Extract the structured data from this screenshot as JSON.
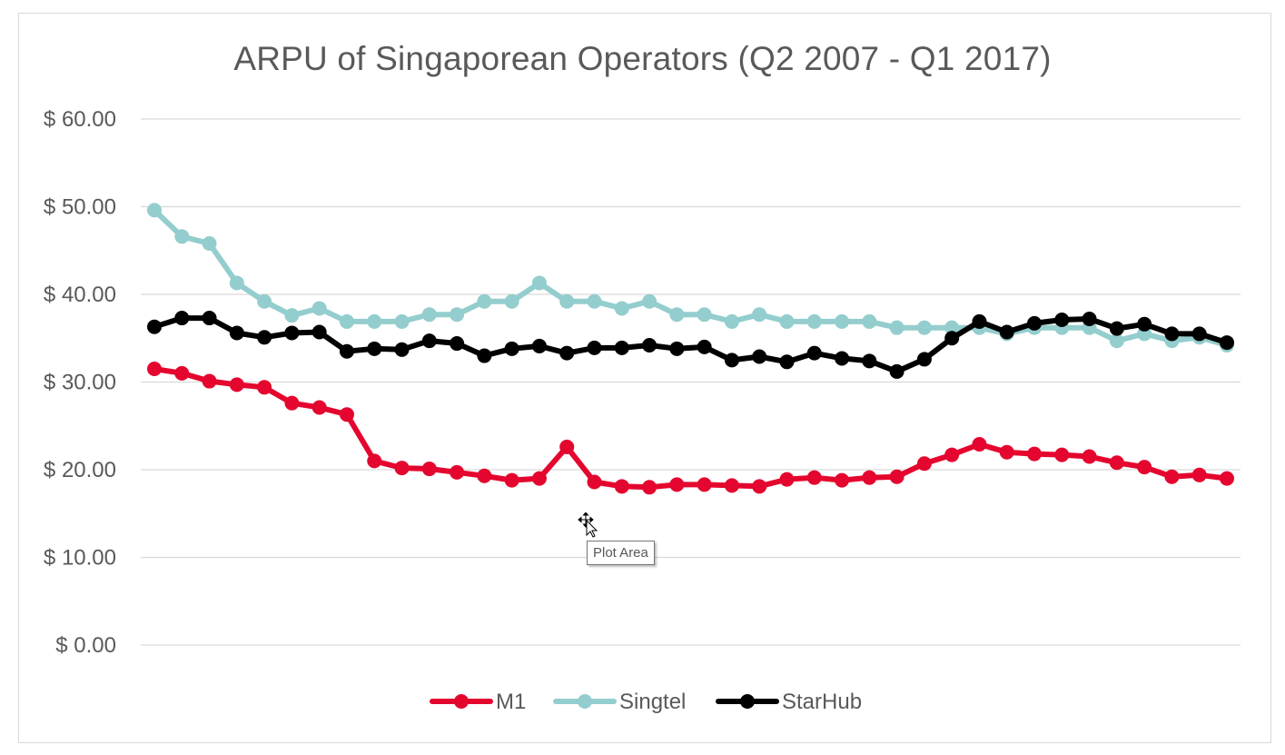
{
  "chart_data": {
    "type": "line",
    "title": "ARPU of Singaporean Operators (Q2 2007 - Q1 2017)",
    "xlabel": "",
    "ylabel": "",
    "ylim": [
      0,
      60
    ],
    "ytick_values": [
      0,
      10,
      20,
      30,
      40,
      50,
      60
    ],
    "ytick_labels": [
      "$ 0.00",
      "$ 10.00",
      "$ 20.00",
      "$ 30.00",
      "$ 40.00",
      "$ 50.00",
      "$ 60.00"
    ],
    "grid": true,
    "legend_position": "bottom",
    "x_count": 40,
    "series": [
      {
        "name": "M1",
        "color": "#e4062e",
        "values": [
          31.5,
          31.0,
          30.1,
          29.7,
          29.4,
          27.6,
          27.1,
          26.3,
          21.0,
          20.2,
          20.1,
          19.7,
          19.3,
          18.8,
          19.0,
          22.6,
          18.6,
          18.1,
          18.0,
          18.3,
          18.3,
          18.2,
          18.1,
          18.9,
          19.1,
          18.8,
          19.1,
          19.2,
          20.7,
          21.7,
          22.9,
          22.0,
          21.8,
          21.7,
          21.5,
          20.8,
          20.3,
          19.2,
          19.4,
          19.0
        ]
      },
      {
        "name": "Singtel",
        "color": "#94cdcd",
        "values": [
          49.6,
          46.6,
          45.8,
          41.3,
          39.2,
          37.6,
          38.4,
          36.9,
          36.9,
          36.9,
          37.7,
          37.7,
          39.2,
          39.2,
          41.3,
          39.2,
          39.2,
          38.4,
          39.2,
          37.7,
          37.7,
          36.9,
          37.7,
          36.9,
          36.9,
          36.9,
          36.9,
          36.2,
          36.2,
          36.2,
          36.2,
          35.5,
          36.2,
          36.2,
          36.2,
          34.7,
          35.5,
          34.7,
          35.1,
          34.2
        ]
      },
      {
        "name": "StarHub",
        "color": "#000000",
        "values": [
          36.3,
          37.3,
          37.3,
          35.6,
          35.1,
          35.6,
          35.7,
          33.5,
          33.8,
          33.7,
          34.7,
          34.4,
          33.0,
          33.8,
          34.1,
          33.3,
          33.9,
          33.9,
          34.2,
          33.8,
          34.0,
          32.5,
          32.9,
          32.3,
          33.3,
          32.7,
          32.4,
          31.2,
          32.6,
          35.0,
          36.9,
          35.7,
          36.7,
          37.1,
          37.2,
          36.1,
          36.6,
          35.5,
          35.5,
          34.5
        ]
      }
    ]
  },
  "tooltip": {
    "text": "Plot Area"
  }
}
